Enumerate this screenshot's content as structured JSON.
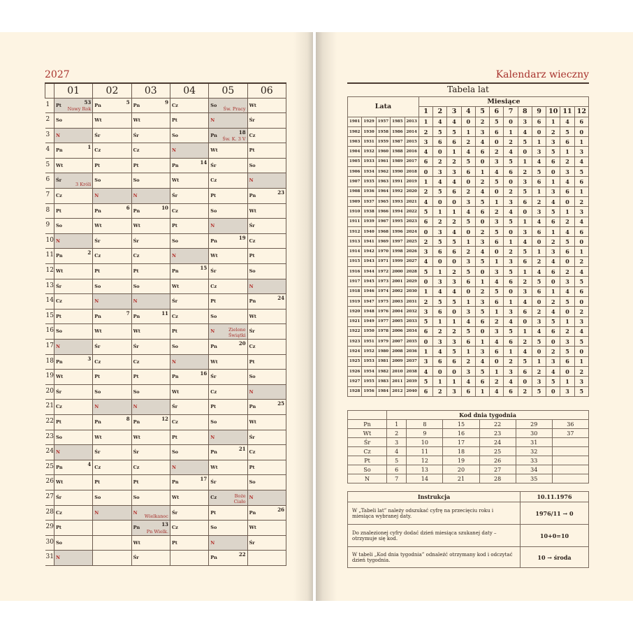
{
  "left": {
    "year": "2027",
    "months": [
      "01",
      "02",
      "03",
      "04",
      "05",
      "06"
    ],
    "days": [
      [
        "Pt",
        "So",
        "N",
        "Pn",
        "Wt",
        "Śr",
        "Cz",
        "Pt",
        "So",
        "N",
        "Pn",
        "Wt",
        "Śr",
        "Cz",
        "Pt",
        "So",
        "N",
        "Pn",
        "Wt",
        "Śr",
        "Cz",
        "Pt",
        "So",
        "N",
        "Pn",
        "Wt",
        "Śr",
        "Cz",
        "Pt",
        "So",
        "N"
      ],
      [
        "Pn",
        "Wt",
        "Śr",
        "Cz",
        "Pt",
        "So",
        "N",
        "Pn",
        "Wt",
        "Śr",
        "Cz",
        "Pt",
        "So",
        "N",
        "Pn",
        "Wt",
        "Śr",
        "Cz",
        "Pt",
        "So",
        "N",
        "Pn",
        "Wt",
        "Śr",
        "Cz",
        "Pt",
        "So",
        "N"
      ],
      [
        "Pn",
        "Wt",
        "Śr",
        "Cz",
        "Pt",
        "So",
        "N",
        "Pn",
        "Wt",
        "Śr",
        "Cz",
        "Pt",
        "So",
        "N",
        "Pn",
        "Wt",
        "Śr",
        "Cz",
        "Pt",
        "So",
        "N",
        "Pn",
        "Wt",
        "Śr",
        "Cz",
        "Pt",
        "So",
        "N",
        "Pn",
        "Wt",
        "Śr"
      ],
      [
        "Cz",
        "Pt",
        "So",
        "N",
        "Pn",
        "Wt",
        "Śr",
        "Cz",
        "Pt",
        "So",
        "N",
        "Pn",
        "Wt",
        "Śr",
        "Cz",
        "Pt",
        "So",
        "N",
        "Pn",
        "Wt",
        "Śr",
        "Cz",
        "Pt",
        "So",
        "N",
        "Pn",
        "Wt",
        "Śr",
        "Cz",
        "Pt"
      ],
      [
        "So",
        "N",
        "Pn",
        "Wt",
        "Śr",
        "Cz",
        "Pt",
        "So",
        "N",
        "Pn",
        "Wt",
        "Śr",
        "Cz",
        "Pt",
        "So",
        "N",
        "Pn",
        "Wt",
        "Śr",
        "Cz",
        "Pt",
        "So",
        "N",
        "Pn",
        "Wt",
        "Śr",
        "Cz",
        "Pt",
        "So",
        "N",
        "Pn"
      ],
      [
        "Wt",
        "Śr",
        "Cz",
        "Pt",
        "So",
        "N",
        "Pn",
        "Wt",
        "Śr",
        "Cz",
        "Pt",
        "So",
        "N",
        "Pn",
        "Wt",
        "Śr",
        "Cz",
        "Pt",
        "So",
        "N",
        "Pn",
        "Wt",
        "Śr",
        "Cz",
        "Pt",
        "So",
        "N",
        "Pn",
        "Wt",
        "Śr"
      ]
    ],
    "week_numbers": [
      {
        "m": 0,
        "d": 1,
        "w": "53"
      },
      {
        "m": 0,
        "d": 4,
        "w": "1"
      },
      {
        "m": 0,
        "d": 11,
        "w": "2"
      },
      {
        "m": 0,
        "d": 18,
        "w": "3"
      },
      {
        "m": 0,
        "d": 25,
        "w": "4"
      },
      {
        "m": 1,
        "d": 1,
        "w": "5"
      },
      {
        "m": 1,
        "d": 8,
        "w": "6"
      },
      {
        "m": 1,
        "d": 15,
        "w": "7"
      },
      {
        "m": 1,
        "d": 22,
        "w": "8"
      },
      {
        "m": 2,
        "d": 1,
        "w": "9"
      },
      {
        "m": 2,
        "d": 8,
        "w": "10"
      },
      {
        "m": 2,
        "d": 15,
        "w": "11"
      },
      {
        "m": 2,
        "d": 22,
        "w": "12"
      },
      {
        "m": 2,
        "d": 29,
        "w": "13"
      },
      {
        "m": 3,
        "d": 5,
        "w": "14"
      },
      {
        "m": 3,
        "d": 12,
        "w": "15"
      },
      {
        "m": 3,
        "d": 19,
        "w": "16"
      },
      {
        "m": 3,
        "d": 26,
        "w": "17"
      },
      {
        "m": 4,
        "d": 3,
        "w": "18"
      },
      {
        "m": 4,
        "d": 10,
        "w": "19"
      },
      {
        "m": 4,
        "d": 17,
        "w": "20"
      },
      {
        "m": 4,
        "d": 24,
        "w": "21"
      },
      {
        "m": 4,
        "d": 31,
        "w": "22"
      },
      {
        "m": 5,
        "d": 7,
        "w": "23"
      },
      {
        "m": 5,
        "d": 14,
        "w": "24"
      },
      {
        "m": 5,
        "d": 21,
        "w": "25"
      },
      {
        "m": 5,
        "d": 28,
        "w": "26"
      }
    ],
    "holidays": [
      {
        "m": 0,
        "d": 1,
        "name": "Nowy Rok"
      },
      {
        "m": 0,
        "d": 6,
        "name": "3 Króli"
      },
      {
        "m": 2,
        "d": 28,
        "name": "Wielkanoc"
      },
      {
        "m": 2,
        "d": 29,
        "name": "Pn Wielk."
      },
      {
        "m": 4,
        "d": 1,
        "name": "Św. Pracy"
      },
      {
        "m": 4,
        "d": 3,
        "name": "Św. K. 3 V"
      },
      {
        "m": 4,
        "d": 16,
        "name": "Zielone Świątki"
      },
      {
        "m": 4,
        "d": 27,
        "name": "Boże Ciało"
      }
    ]
  },
  "right": {
    "title": "Kalendarz wieczny",
    "year_table": {
      "title": "Tabela lat",
      "years_header": "Lata",
      "months_header": "Miesiące",
      "months": [
        "1",
        "2",
        "3",
        "4",
        "5",
        "6",
        "7",
        "8",
        "9",
        "10",
        "11",
        "12"
      ],
      "rows": [
        {
          "y": [
            "1901",
            "1929",
            "1957",
            "1985",
            "2013"
          ],
          "v": [
            1,
            4,
            4,
            0,
            2,
            5,
            0,
            3,
            6,
            1,
            4,
            6
          ]
        },
        {
          "y": [
            "1902",
            "1930",
            "1958",
            "1986",
            "2014"
          ],
          "v": [
            2,
            5,
            5,
            1,
            3,
            6,
            1,
            4,
            0,
            2,
            5,
            0
          ]
        },
        {
          "y": [
            "1903",
            "1931",
            "1959",
            "1987",
            "2015"
          ],
          "v": [
            3,
            6,
            6,
            2,
            4,
            0,
            2,
            5,
            1,
            3,
            6,
            1
          ]
        },
        {
          "y": [
            "1904",
            "1932",
            "1960",
            "1988",
            "2016"
          ],
          "v": [
            4,
            0,
            1,
            4,
            6,
            2,
            4,
            0,
            3,
            5,
            1,
            3
          ]
        },
        {
          "y": [
            "1905",
            "1933",
            "1961",
            "1989",
            "2017"
          ],
          "v": [
            6,
            2,
            2,
            5,
            0,
            3,
            5,
            1,
            4,
            6,
            2,
            4
          ]
        },
        {
          "y": [
            "1906",
            "1934",
            "1962",
            "1990",
            "2018"
          ],
          "v": [
            0,
            3,
            3,
            6,
            1,
            4,
            6,
            2,
            5,
            0,
            3,
            5
          ]
        },
        {
          "y": [
            "1907",
            "1935",
            "1963",
            "1991",
            "2019"
          ],
          "v": [
            1,
            4,
            4,
            0,
            2,
            5,
            0,
            3,
            6,
            1,
            4,
            6
          ]
        },
        {
          "y": [
            "1908",
            "1936",
            "1964",
            "1992",
            "2020"
          ],
          "v": [
            2,
            5,
            6,
            2,
            4,
            0,
            2,
            5,
            1,
            3,
            6,
            1
          ]
        },
        {
          "y": [
            "1909",
            "1937",
            "1965",
            "1993",
            "2021"
          ],
          "v": [
            4,
            0,
            0,
            3,
            5,
            1,
            3,
            6,
            2,
            4,
            0,
            2
          ]
        },
        {
          "y": [
            "1910",
            "1938",
            "1966",
            "1994",
            "2022"
          ],
          "v": [
            5,
            1,
            1,
            4,
            6,
            2,
            4,
            0,
            3,
            5,
            1,
            3
          ]
        },
        {
          "y": [
            "1911",
            "1939",
            "1967",
            "1995",
            "2023"
          ],
          "v": [
            6,
            2,
            2,
            5,
            0,
            3,
            5,
            1,
            4,
            6,
            2,
            4
          ]
        },
        {
          "y": [
            "1912",
            "1940",
            "1968",
            "1996",
            "2024"
          ],
          "v": [
            0,
            3,
            4,
            0,
            2,
            5,
            0,
            3,
            6,
            1,
            4,
            6
          ]
        },
        {
          "y": [
            "1913",
            "1941",
            "1969",
            "1997",
            "2025"
          ],
          "v": [
            2,
            5,
            5,
            1,
            3,
            6,
            1,
            4,
            0,
            2,
            5,
            0
          ]
        },
        {
          "y": [
            "1914",
            "1942",
            "1970",
            "1998",
            "2026"
          ],
          "v": [
            3,
            6,
            6,
            2,
            4,
            0,
            2,
            5,
            1,
            3,
            6,
            1
          ]
        },
        {
          "y": [
            "1915",
            "1943",
            "1971",
            "1999",
            "2027"
          ],
          "v": [
            4,
            0,
            0,
            3,
            5,
            1,
            3,
            6,
            2,
            4,
            0,
            2
          ]
        },
        {
          "y": [
            "1916",
            "1944",
            "1972",
            "2000",
            "2028"
          ],
          "v": [
            5,
            1,
            2,
            5,
            0,
            3,
            5,
            1,
            4,
            6,
            2,
            4
          ]
        },
        {
          "y": [
            "1917",
            "1945",
            "1973",
            "2001",
            "2029"
          ],
          "v": [
            0,
            3,
            3,
            6,
            1,
            4,
            6,
            2,
            5,
            0,
            3,
            5
          ]
        },
        {
          "y": [
            "1918",
            "1946",
            "1974",
            "2002",
            "2030"
          ],
          "v": [
            1,
            4,
            4,
            0,
            2,
            5,
            0,
            3,
            6,
            1,
            4,
            6
          ]
        },
        {
          "y": [
            "1919",
            "1947",
            "1975",
            "2003",
            "2031"
          ],
          "v": [
            2,
            5,
            5,
            1,
            3,
            6,
            1,
            4,
            0,
            2,
            5,
            0
          ]
        },
        {
          "y": [
            "1920",
            "1948",
            "1976",
            "2004",
            "2032"
          ],
          "v": [
            3,
            6,
            0,
            3,
            5,
            1,
            3,
            6,
            2,
            4,
            0,
            2
          ]
        },
        {
          "y": [
            "1921",
            "1949",
            "1977",
            "2005",
            "2033"
          ],
          "v": [
            5,
            1,
            1,
            4,
            6,
            2,
            4,
            0,
            3,
            5,
            1,
            3
          ]
        },
        {
          "y": [
            "1922",
            "1950",
            "1978",
            "2006",
            "2034"
          ],
          "v": [
            6,
            2,
            2,
            5,
            0,
            3,
            5,
            1,
            4,
            6,
            2,
            4
          ]
        },
        {
          "y": [
            "1923",
            "1951",
            "1979",
            "2007",
            "2035"
          ],
          "v": [
            0,
            3,
            3,
            6,
            1,
            4,
            6,
            2,
            5,
            0,
            3,
            5
          ]
        },
        {
          "y": [
            "1924",
            "1952",
            "1980",
            "2008",
            "2036"
          ],
          "v": [
            1,
            4,
            5,
            1,
            3,
            6,
            1,
            4,
            0,
            2,
            5,
            0
          ]
        },
        {
          "y": [
            "1925",
            "1953",
            "1981",
            "2009",
            "2037"
          ],
          "v": [
            3,
            6,
            6,
            2,
            4,
            0,
            2,
            5,
            1,
            3,
            6,
            1
          ]
        },
        {
          "y": [
            "1926",
            "1954",
            "1982",
            "2010",
            "2038"
          ],
          "v": [
            4,
            0,
            0,
            3,
            5,
            1,
            3,
            6,
            2,
            4,
            0,
            2
          ]
        },
        {
          "y": [
            "1927",
            "1955",
            "1983",
            "2011",
            "2039"
          ],
          "v": [
            5,
            1,
            1,
            4,
            6,
            2,
            4,
            0,
            3,
            5,
            1,
            3
          ]
        },
        {
          "y": [
            "1928",
            "1956",
            "1984",
            "2012",
            "2040"
          ],
          "v": [
            6,
            2,
            3,
            6,
            1,
            4,
            6,
            2,
            5,
            0,
            3,
            5
          ]
        }
      ]
    },
    "code_table": {
      "title": "Kod dnia tygodnia",
      "rows": [
        {
          "day": "Pn",
          "codes": [
            "1",
            "8",
            "15",
            "22",
            "29",
            "36"
          ]
        },
        {
          "day": "Wt",
          "codes": [
            "2",
            "9",
            "16",
            "23",
            "30",
            "37"
          ]
        },
        {
          "day": "Śr",
          "codes": [
            "3",
            "10",
            "17",
            "24",
            "31",
            ""
          ]
        },
        {
          "day": "Cz",
          "codes": [
            "4",
            "11",
            "18",
            "25",
            "32",
            ""
          ]
        },
        {
          "day": "Pt",
          "codes": [
            "5",
            "12",
            "19",
            "26",
            "33",
            ""
          ]
        },
        {
          "day": "So",
          "codes": [
            "6",
            "13",
            "20",
            "27",
            "34",
            ""
          ]
        },
        {
          "day": "N",
          "codes": [
            "7",
            "14",
            "21",
            "28",
            "35",
            ""
          ]
        }
      ]
    },
    "instructions": {
      "title": "Instrukcja",
      "example_date": "10.11.1976",
      "steps": [
        {
          "text": "W „Tabeli lat” należy odszukać cyfrę na przecięciu roku i miesiąca wybranej daty.",
          "example": "1976/11 → 0"
        },
        {
          "text": "Do znalezionej cyfry dodać dzień miesiąca szukanej daty – otrzymuje się kod.",
          "example": "10+0=10"
        },
        {
          "text": "W tabeli „Kod dnia tygodnia” odnaleźć otrzymany kod i odczytać dzień tygodnia.",
          "example": "10 → środa"
        }
      ]
    }
  },
  "colors": {
    "accent": "#a8322d",
    "holiday_fill": "#dcd5ca",
    "paper": "#fdf4e3"
  }
}
